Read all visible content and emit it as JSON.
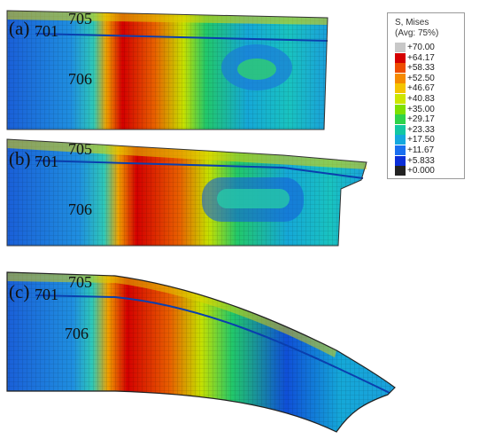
{
  "panels": [
    {
      "label": "(a)",
      "parts": [
        "701",
        "705",
        "706"
      ]
    },
    {
      "label": "(b)",
      "parts": [
        "701",
        "705",
        "706"
      ]
    },
    {
      "label": "(c)",
      "parts": [
        "701",
        "705",
        "706"
      ]
    }
  ],
  "legend": {
    "title_line1": "S, Mises",
    "title_line2": "(Avg: 75%)",
    "ticks": [
      "+70.00",
      "+64.17",
      "+58.33",
      "+52.50",
      "+46.67",
      "+40.83",
      "+35.00",
      "+29.17",
      "+23.33",
      "+17.50",
      "+11.67",
      "+5.833",
      "+0.000"
    ],
    "colors": [
      "#c8c8c8",
      "#d40000",
      "#ee4d00",
      "#f58a00",
      "#f4c400",
      "#cde600",
      "#7ee000",
      "#2ed34a",
      "#12c7a3",
      "#14a8de",
      "#1a6ff0",
      "#0b2fd8",
      "#222222"
    ]
  }
}
